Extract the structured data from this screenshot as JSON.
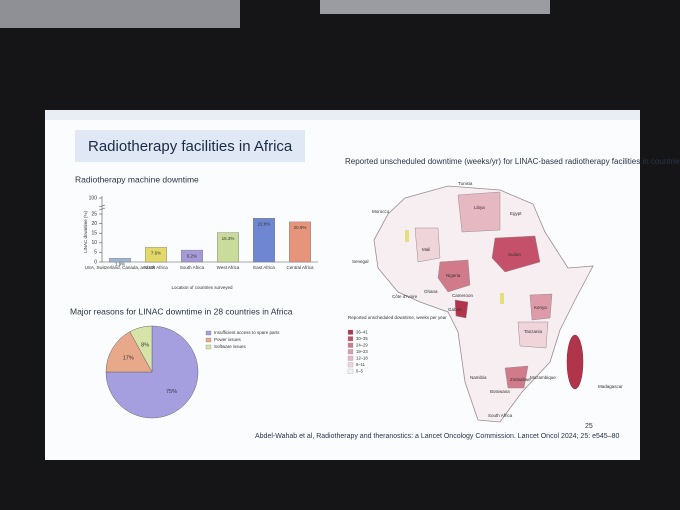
{
  "slide": {
    "title": "Radiotherapy facilities in Africa",
    "page_number": "25",
    "citation": "Abdel-Wahab et al, Radiotherapy and theranostics: a Lancet Oncology Commission. Lancet Oncol 2024; 25: e545–80"
  },
  "chart_data": [
    {
      "type": "bar",
      "title": "Radiotherapy machine downtime",
      "y_label": "LINAC downtime (%)",
      "x_label": "Location of countries surveyed",
      "categories": [
        "USA, Switzerland, Canada, and UK",
        "North Africa",
        "South Africa",
        "West Africa",
        "East Africa",
        "Central Africa"
      ],
      "values": [
        1.9,
        7.6,
        6.2,
        15.3,
        22.8,
        20.9
      ],
      "value_labels": [
        "1.9%",
        "7.6%",
        "6.2%",
        "15.3%",
        "22.8%",
        "20.9%"
      ],
      "colors": [
        "#9fb4d6",
        "#e3d86a",
        "#a79ad8",
        "#c9dc9b",
        "#6f86d2",
        "#e6957c"
      ],
      "ylim": [
        0,
        25
      ],
      "yticks": [
        0,
        5,
        10,
        15,
        20,
        25
      ],
      "axis_break_tick": 100
    },
    {
      "type": "pie",
      "title": "Major reasons for LINAC downtime in 28 countries in Africa",
      "categories": [
        "Insufficient access to spare parts",
        "Power issues",
        "Software issues"
      ],
      "values": [
        75,
        17,
        8
      ],
      "value_labels": [
        "75%",
        "17%",
        "8%"
      ],
      "colors": [
        "#a59fe0",
        "#e8a98a",
        "#d8e3aa"
      ]
    }
  ],
  "map": {
    "title": "Reported unscheduled downtime (weeks/yr) for LINAC-based radiotherapy facilities in countries in Africa",
    "legend_title": "Reported unscheduled downtime, weeks per year",
    "bins": [
      "36–41",
      "30–35",
      "24–29",
      "19–23",
      "12–18",
      "6–11",
      "0–5"
    ],
    "colors": [
      "#b0344a",
      "#c4506a",
      "#d07a8a",
      "#dd9aa8",
      "#e6b8c2",
      "#efd4da",
      "#f8f1f3"
    ],
    "countries": [
      "Tunisia",
      "Morocco",
      "Libya",
      "Egypt",
      "Mali",
      "Sudan",
      "Senegal",
      "Nigeria",
      "Ghana",
      "Côte d'Ivoire",
      "Cameroon",
      "Gabon",
      "Kenya",
      "Tanzania",
      "Namibia",
      "Botswana",
      "Zimbabwe",
      "Mozambique",
      "Madagascar",
      "South Africa"
    ]
  }
}
